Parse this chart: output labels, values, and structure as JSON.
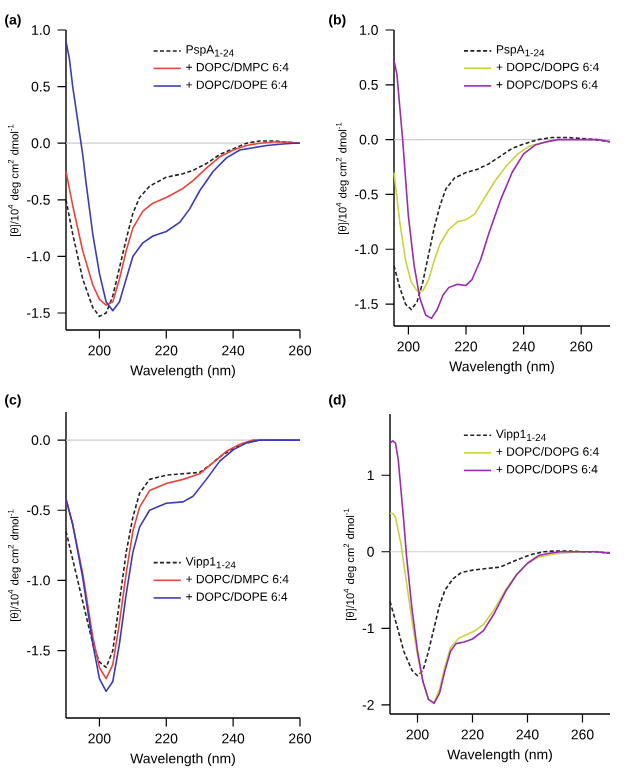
{
  "chart_data": [
    {
      "type": "line",
      "title": "(a)",
      "xlabel": "Wavelength (nm)",
      "ylabel": "[θ]/10$^{4}$ deg cm$^{2}$ dmol$^{-1}$",
      "xlim": [
        190,
        260
      ],
      "xticks": [
        200,
        220,
        240,
        260
      ],
      "ylim": [
        -1.65,
        1.0
      ],
      "yticks": [
        {
          "value": -1.5,
          "label": "-1.5"
        },
        {
          "value": -1.0,
          "label": "-1.0"
        },
        {
          "value": -0.5,
          "label": "-0.5"
        },
        {
          "value": 0,
          "label": "0.0"
        },
        {
          "value": 0.5,
          "label": "0.5"
        },
        {
          "value": 1.0,
          "label": "1.0"
        }
      ],
      "grid": false,
      "legend": "top right",
      "ref_lines": [
        {
          "axis": "y",
          "value": 0,
          "color": "#cccccc"
        }
      ],
      "series": [
        {
          "name": "PspA$_{1-24}$",
          "color": "#222222",
          "line_style": "dashed",
          "x": [
            190,
            192,
            195,
            198,
            200,
            202,
            204,
            206,
            208,
            210,
            212,
            215,
            220,
            225,
            228,
            232,
            236,
            240,
            244,
            248,
            252,
            256,
            260
          ],
          "values": [
            -0.5,
            -0.8,
            -1.2,
            -1.45,
            -1.53,
            -1.5,
            -1.35,
            -1.1,
            -0.85,
            -0.62,
            -0.48,
            -0.38,
            -0.3,
            -0.27,
            -0.24,
            -0.18,
            -0.1,
            -0.05,
            0,
            0.02,
            0.02,
            0.01,
            0
          ]
        },
        {
          "name": "+ DOPC/DMPC 6:4",
          "color": "#e8453c",
          "line_style": "solid",
          "x": [
            190,
            192,
            195,
            198,
            200,
            202,
            204,
            206,
            208,
            210,
            213,
            216,
            220,
            225,
            228,
            232,
            236,
            240,
            244,
            248,
            252,
            256,
            260
          ],
          "values": [
            -0.25,
            -0.55,
            -0.95,
            -1.25,
            -1.38,
            -1.43,
            -1.4,
            -1.2,
            -0.95,
            -0.75,
            -0.6,
            -0.53,
            -0.48,
            -0.4,
            -0.33,
            -0.22,
            -0.12,
            -0.06,
            -0.02,
            0,
            0.01,
            0.01,
            0
          ]
        },
        {
          "name": "+ DOPC/DOPE 6:4",
          "color": "#3a3ab8",
          "line_style": "solid",
          "x": [
            190,
            191,
            192,
            193,
            194,
            195,
            196,
            198,
            200,
            202,
            204,
            206,
            208,
            210,
            213,
            216,
            220,
            224,
            227,
            230,
            234,
            238,
            242,
            246,
            250,
            254,
            258,
            260
          ],
          "values": [
            0.9,
            0.75,
            0.5,
            0.3,
            0.1,
            -0.1,
            -0.35,
            -0.8,
            -1.15,
            -1.4,
            -1.48,
            -1.4,
            -1.2,
            -1.0,
            -0.88,
            -0.82,
            -0.78,
            -0.7,
            -0.58,
            -0.42,
            -0.25,
            -0.13,
            -0.06,
            -0.04,
            -0.02,
            -0.01,
            0,
            0
          ]
        }
      ]
    },
    {
      "type": "line",
      "title": "(b)",
      "xlabel": "Wavelength (nm)",
      "ylabel": "[θ]/10$^{4}$ deg cm$^{2}$ dmol$^{-1}$",
      "xlim": [
        195,
        270
      ],
      "xticks": [
        200,
        220,
        240,
        260
      ],
      "ylim": [
        -1.7,
        1.0
      ],
      "yticks": [
        {
          "value": -1.5,
          "label": "-1.5"
        },
        {
          "value": -1.0,
          "label": "-1.0"
        },
        {
          "value": -0.5,
          "label": "-0.5"
        },
        {
          "value": 0,
          "label": "0.0"
        },
        {
          "value": 0.5,
          "label": "0.5"
        },
        {
          "value": 1.0,
          "label": "1.0"
        }
      ],
      "grid": false,
      "legend": "top right",
      "ref_lines": [
        {
          "axis": "y",
          "value": 0,
          "color": "#cccccc"
        }
      ],
      "series": [
        {
          "name": "PspA$_{1-24}$",
          "color": "#222222",
          "line_style": "dashed",
          "x": [
            195,
            197,
            199,
            201,
            203,
            205,
            207,
            209,
            211,
            213,
            216,
            220,
            224,
            228,
            232,
            236,
            240,
            245,
            250,
            255,
            260,
            265,
            270
          ],
          "values": [
            -1.15,
            -1.35,
            -1.5,
            -1.55,
            -1.48,
            -1.3,
            -1.05,
            -0.8,
            -0.6,
            -0.45,
            -0.35,
            -0.3,
            -0.27,
            -0.22,
            -0.15,
            -0.08,
            -0.04,
            0,
            0.02,
            0.02,
            0.01,
            0,
            -0.02
          ]
        },
        {
          "name": "+ DOPC/DOPG 6:4",
          "color": "#c8d43a",
          "line_style": "solid",
          "x": [
            195,
            197,
            199,
            201,
            203,
            205,
            207,
            209,
            211,
            214,
            217,
            220,
            223,
            226,
            230,
            234,
            238,
            242,
            246,
            250
          ],
          "values": [
            -0.3,
            -0.75,
            -1.1,
            -1.3,
            -1.38,
            -1.38,
            -1.28,
            -1.1,
            -0.95,
            -0.82,
            -0.75,
            -0.73,
            -0.68,
            -0.55,
            -0.38,
            -0.24,
            -0.13,
            -0.06,
            -0.03,
            -0.01
          ]
        },
        {
          "name": "+ DOPC/DOPS 6:4",
          "color": "#9a2ab0",
          "line_style": "solid",
          "x": [
            195,
            196,
            197,
            198,
            199,
            200,
            202,
            204,
            206,
            208,
            210,
            212,
            214,
            217,
            220,
            222,
            225,
            228,
            232,
            236,
            240,
            244,
            248,
            252,
            256,
            262,
            266,
            270
          ],
          "values": [
            0.72,
            0.6,
            0.3,
            0,
            -0.35,
            -0.7,
            -1.15,
            -1.45,
            -1.6,
            -1.63,
            -1.55,
            -1.42,
            -1.35,
            -1.32,
            -1.33,
            -1.28,
            -1.1,
            -0.85,
            -0.55,
            -0.3,
            -0.13,
            -0.05,
            -0.02,
            0,
            0,
            0,
            0,
            -0.02
          ]
        }
      ]
    },
    {
      "type": "line",
      "title": "(c)",
      "xlabel": "Wavelength (nm)",
      "ylabel": "[θ]/10$^{4}$ deg cm$^{2}$ dmol$^{-1}$",
      "xlim": [
        190,
        260
      ],
      "xticks": [
        200,
        220,
        240,
        260
      ],
      "ylim": [
        -1.98,
        0.2
      ],
      "yticks": [
        {
          "value": -1.5,
          "label": "-1.5"
        },
        {
          "value": -1.0,
          "label": "-1.0"
        },
        {
          "value": -0.5,
          "label": "-0.5"
        },
        {
          "value": 0,
          "label": "0.0"
        }
      ],
      "grid": false,
      "legend": "right",
      "ref_lines": [
        {
          "axis": "y",
          "value": 0,
          "color": "#cccccc"
        }
      ],
      "series": [
        {
          "name": "Vipp1$_{1-24}$",
          "color": "#222222",
          "line_style": "dashed",
          "x": [
            190,
            192,
            195,
            198,
            200,
            202,
            204,
            206,
            208,
            210,
            212,
            215,
            220,
            225,
            230,
            233,
            236,
            240,
            244,
            248
          ],
          "values": [
            -0.65,
            -0.85,
            -1.15,
            -1.45,
            -1.58,
            -1.62,
            -1.5,
            -1.15,
            -0.8,
            -0.55,
            -0.38,
            -0.28,
            -0.25,
            -0.24,
            -0.23,
            -0.18,
            -0.12,
            -0.06,
            -0.02,
            0
          ]
        },
        {
          "name": "+ DOPC/DMPC 6:4",
          "color": "#e8453c",
          "line_style": "solid",
          "x": [
            190,
            192,
            195,
            198,
            200,
            202,
            204,
            206,
            208,
            210,
            212,
            215,
            220,
            225,
            230,
            234,
            238,
            242,
            246,
            250,
            255,
            260
          ],
          "values": [
            -0.42,
            -0.6,
            -0.95,
            -1.4,
            -1.62,
            -1.7,
            -1.6,
            -1.3,
            -0.95,
            -0.65,
            -0.48,
            -0.36,
            -0.31,
            -0.28,
            -0.24,
            -0.16,
            -0.08,
            -0.03,
            0,
            0,
            0,
            0
          ]
        },
        {
          "name": "+ DOPC/DOPE  6:4",
          "color": "#3a3ab8",
          "line_style": "solid",
          "x": [
            190,
            192,
            195,
            198,
            200,
            202,
            204,
            206,
            208,
            210,
            212,
            215,
            220,
            225,
            228,
            232,
            236,
            240,
            244,
            248,
            252,
            256,
            260
          ],
          "values": [
            -0.42,
            -0.6,
            -0.98,
            -1.45,
            -1.7,
            -1.79,
            -1.72,
            -1.45,
            -1.1,
            -0.8,
            -0.62,
            -0.5,
            -0.45,
            -0.44,
            -0.4,
            -0.28,
            -0.15,
            -0.07,
            -0.02,
            0,
            0,
            0,
            0
          ]
        }
      ]
    },
    {
      "type": "line",
      "title": "(d)",
      "xlabel": "Wavelength (nm)",
      "ylabel": "[θ]/10$^{4}$ deg cm$^{2}$ dmol$^{-1}$",
      "xlim": [
        190,
        270
      ],
      "xticks": [
        200,
        220,
        240,
        260
      ],
      "ylim": [
        -2.12,
        1.8
      ],
      "yticks": [
        -2,
        -1,
        0,
        1
      ],
      "grid": false,
      "legend": "top right",
      "ref_lines": [
        {
          "axis": "y",
          "value": 0,
          "color": "#cccccc"
        }
      ],
      "series": [
        {
          "name": "Vipp1$_{1-24}$",
          "color": "#222222",
          "line_style": "dashed",
          "x": [
            190,
            192,
            195,
            198,
            200,
            202,
            204,
            206,
            208,
            210,
            213,
            216,
            220,
            225,
            230,
            234,
            238,
            242,
            246,
            250,
            255,
            260,
            265,
            270
          ],
          "values": [
            -0.65,
            -0.9,
            -1.3,
            -1.55,
            -1.62,
            -1.55,
            -1.3,
            -1.0,
            -0.7,
            -0.5,
            -0.35,
            -0.27,
            -0.24,
            -0.22,
            -0.2,
            -0.14,
            -0.08,
            -0.03,
            0,
            0.01,
            0.01,
            0,
            0,
            -0.02
          ]
        },
        {
          "name": "+ DOPC/DOPG 6:4",
          "color": "#c8d43a",
          "line_style": "solid",
          "x": [
            190,
            191,
            192,
            194,
            196,
            198,
            200,
            202,
            204,
            206,
            208,
            210,
            212,
            215,
            218,
            221,
            224,
            228,
            232,
            236,
            240,
            244,
            248,
            252,
            256,
            260
          ],
          "values": [
            0.5,
            0.5,
            0.45,
            0.1,
            -0.4,
            -0.9,
            -1.35,
            -1.7,
            -1.93,
            -1.97,
            -1.8,
            -1.5,
            -1.25,
            -1.13,
            -1.08,
            -1.03,
            -0.95,
            -0.75,
            -0.5,
            -0.3,
            -0.15,
            -0.07,
            -0.04,
            -0.02,
            -0.01,
            0
          ]
        },
        {
          "name": "+ DOPC/DOPS 6:4",
          "color": "#9a2ab0",
          "line_style": "solid",
          "x": [
            190,
            191,
            192,
            193,
            194,
            195,
            196,
            198,
            200,
            202,
            204,
            206,
            208,
            210,
            212,
            214,
            217,
            220,
            224,
            228,
            232,
            236,
            240,
            244,
            248,
            252,
            256,
            260,
            265,
            270
          ],
          "values": [
            1.42,
            1.45,
            1.42,
            1.2,
            0.8,
            0.4,
            -0.05,
            -0.75,
            -1.3,
            -1.7,
            -1.93,
            -1.98,
            -1.85,
            -1.55,
            -1.3,
            -1.2,
            -1.18,
            -1.14,
            -1.03,
            -0.8,
            -0.52,
            -0.3,
            -0.15,
            -0.05,
            -0.02,
            0,
            0,
            0,
            0,
            -0.02
          ]
        }
      ]
    }
  ]
}
